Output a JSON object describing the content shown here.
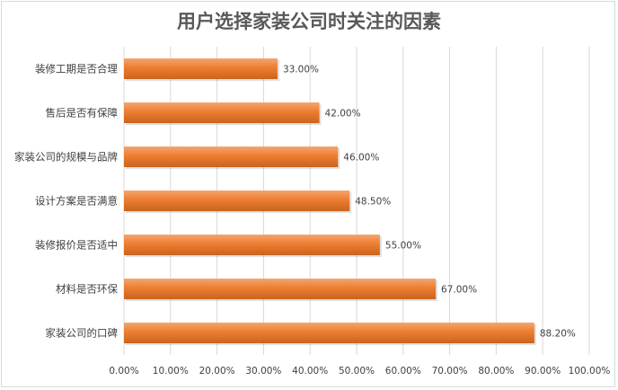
{
  "chart_data": {
    "type": "bar",
    "orientation": "horizontal",
    "title": "用户选择家装公司时关注的因素",
    "categories": [
      "装修工期是否合理",
      "售后是否有保障",
      "家装公司的规模与品牌",
      "设计方案是否满意",
      "装修报价是否适中",
      "材料是否环保",
      "家装公司的口碑"
    ],
    "values": [
      33.0,
      42.0,
      46.0,
      48.5,
      55.0,
      67.0,
      88.2
    ],
    "data_labels": [
      "33.00%",
      "42.00%",
      "46.00%",
      "48.50%",
      "55.00%",
      "67.00%",
      "88.20%"
    ],
    "xlim": [
      0,
      100
    ],
    "x_ticks": [
      0,
      10,
      20,
      30,
      40,
      50,
      60,
      70,
      80,
      90,
      100
    ],
    "x_tick_labels": [
      "0.00%",
      "10.00%",
      "20.00%",
      "30.00%",
      "40.00%",
      "50.00%",
      "60.00%",
      "70.00%",
      "80.00%",
      "90.00%",
      "100.00%"
    ],
    "grid": "vertical-major",
    "legend": "none",
    "colors": {
      "bar": "#ed7d31",
      "bar_highlight": "#f4a56f",
      "bar_shadow": "#b85e22",
      "grid": "#d9d9d9",
      "text": "#404040",
      "title": "#595959"
    }
  }
}
